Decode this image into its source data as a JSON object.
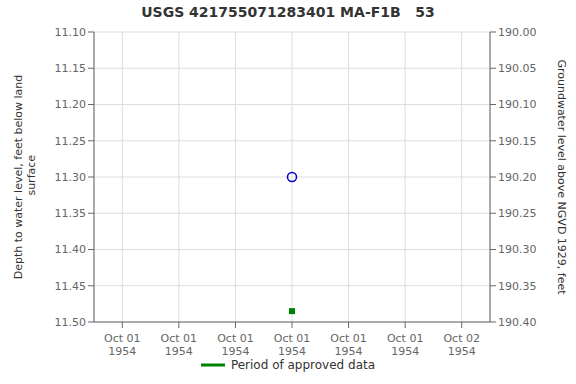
{
  "chart_data": {
    "type": "scatter",
    "title": "USGS 421755071283401 MA-F1B   53",
    "y_label": "Depth to water level, feet below land\n surface",
    "y2_label": "Groundwater level above NGVD 1929, feet",
    "categories": [
      "Oct 01\n1954",
      "Oct 01\n1954",
      "Oct 01\n1954",
      "Oct 01\n1954",
      "Oct 01\n1954",
      "Oct 01\n1954",
      "Oct 02\n1954"
    ],
    "series": [
      {
        "color": "#0000cc",
        "marker": "circle",
        "values": [
          null,
          null,
          null,
          11.3,
          null,
          null,
          null
        ]
      },
      {
        "name": "Period of approved data",
        "color": "#008000",
        "marker": "square",
        "values": [
          null,
          null,
          null,
          11.485,
          null,
          null,
          null
        ]
      }
    ],
    "ylim": [
      11.5,
      11.1
    ],
    "yticks": [
      {
        "value": 11.1,
        "label": "11.10"
      },
      11.15,
      {
        "value": 11.2,
        "label": "11.20"
      },
      11.25,
      {
        "value": 11.3,
        "label": "11.30"
      },
      11.35,
      {
        "value": 11.4,
        "label": "11.40"
      },
      11.45,
      {
        "value": 11.5,
        "label": "11.50"
      }
    ],
    "y2lim": [
      190.4,
      190.0
    ],
    "y2ticks": [
      {
        "value": 190.4,
        "label": "190.40"
      },
      190.35,
      {
        "value": 190.3,
        "label": "190.30"
      },
      190.25,
      {
        "value": 190.2,
        "label": "190.20"
      },
      190.15,
      {
        "value": 190.1,
        "label": "190.10"
      },
      190.05,
      {
        "value": 190,
        "label": "190.00"
      }
    ],
    "grid": true,
    "legend": "bottom"
  }
}
